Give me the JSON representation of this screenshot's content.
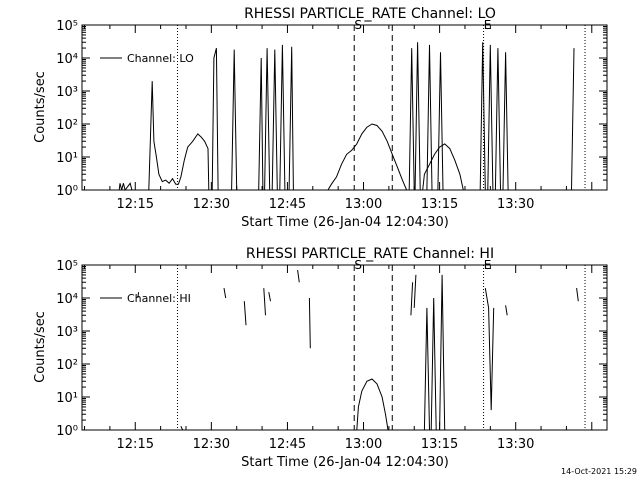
{
  "footer": {
    "timestamp": "14-Oct-2021 15:29"
  },
  "chart_data": [
    {
      "type": "line",
      "title": "RHESSI PARTICLE_RATE Channel: LO",
      "xlabel": "Start Time (26-Jan-04 12:04:30)",
      "ylabel": "Counts/sec",
      "y_scale": "log",
      "ylim": [
        1,
        100000
      ],
      "y_ticks": [
        1,
        10,
        100,
        1000,
        10000,
        100000
      ],
      "x_ticks": [
        "12:15",
        "12:30",
        "12:45",
        "13:00",
        "13:15",
        "13:30"
      ],
      "xlim": [
        "12:04:30",
        "13:48:00"
      ],
      "legend": "top-left",
      "series": [
        {
          "name": "Channel: LO",
          "color": "#000000",
          "segments": [
            [
              [
                "12:11:50",
                1.0
              ],
              [
                "12:12:00",
                1.6
              ],
              [
                "12:12:20",
                1.0
              ],
              [
                "12:12:40",
                1.6
              ],
              [
                "12:13:00",
                1.0
              ],
              [
                "12:14:00",
                1.6
              ],
              [
                "12:14:20",
                1.0
              ]
            ],
            [
              [
                "12:17:40",
                1.0
              ],
              [
                "12:18:20",
                2000
              ],
              [
                "12:18:40",
                30
              ],
              [
                "12:19:10",
                10
              ],
              [
                "12:19:40",
                3
              ],
              [
                "12:20:20",
                1.8
              ],
              [
                "12:21:00",
                2
              ],
              [
                "12:21:40",
                1.6
              ],
              [
                "12:22:20",
                2.2
              ],
              [
                "12:23:00",
                1.5
              ],
              [
                "12:23:30",
                1.5
              ],
              [
                "12:24:00",
                2.5
              ],
              [
                "12:24:40",
                8
              ],
              [
                "12:25:20",
                20
              ],
              [
                "12:26:20",
                30
              ],
              [
                "12:27:20",
                50
              ],
              [
                "12:28:00",
                40
              ],
              [
                "12:28:40",
                30
              ],
              [
                "12:29:20",
                18
              ],
              [
                "12:29:30",
                1.0
              ]
            ],
            [
              [
                "12:30:10",
                1.0
              ],
              [
                "12:30:30",
                10000
              ],
              [
                "12:31:00",
                20000
              ],
              [
                "12:31:20",
                1.0
              ]
            ],
            [
              [
                "12:34:00",
                1.0
              ],
              [
                "12:34:30",
                18000
              ],
              [
                "12:35:00",
                1.0
              ]
            ],
            [
              [
                "12:39:20",
                1.0
              ],
              [
                "12:39:50",
                10000
              ],
              [
                "12:40:10",
                1.0
              ]
            ],
            [
              [
                "12:40:30",
                1.0
              ],
              [
                "12:41:00",
                20000
              ],
              [
                "12:41:30",
                1.0
              ]
            ],
            [
              [
                "12:42:00",
                1.0
              ],
              [
                "12:42:30",
                18000
              ],
              [
                "12:43:00",
                1.0
              ]
            ],
            [
              [
                "12:43:30",
                1.0
              ],
              [
                "12:44:00",
                25000
              ],
              [
                "12:44:30",
                1.0
              ]
            ],
            [
              [
                "12:45:20",
                1.0
              ],
              [
                "12:45:50",
                22000
              ],
              [
                "12:46:10",
                1.0
              ]
            ],
            [
              [
                "12:53:00",
                1.0
              ],
              [
                "12:53:40",
                1.5
              ],
              [
                "12:54:40",
                2.5
              ],
              [
                "12:55:40",
                6
              ],
              [
                "12:56:40",
                12
              ],
              [
                "12:57:40",
                16
              ],
              [
                "12:58:40",
                25
              ],
              [
                "12:59:40",
                50
              ],
              [
                "13:00:40",
                80
              ],
              [
                "13:01:40",
                100
              ],
              [
                "13:02:40",
                90
              ],
              [
                "13:03:40",
                60
              ],
              [
                "13:04:40",
                30
              ],
              [
                "13:05:40",
                12
              ],
              [
                "13:06:40",
                5
              ],
              [
                "13:07:40",
                2
              ],
              [
                "13:08:30",
                1.0
              ]
            ],
            [
              [
                "13:09:00",
                1.0
              ],
              [
                "13:09:30",
                20000
              ],
              [
                "13:10:00",
                1.0
              ]
            ],
            [
              [
                "13:11:40",
                1.0
              ],
              [
                "13:12:00",
                3
              ],
              [
                "13:13:00",
                6
              ],
              [
                "13:14:00",
                12
              ],
              [
                "13:15:00",
                20
              ],
              [
                "13:16:00",
                25
              ],
              [
                "13:17:00",
                18
              ],
              [
                "13:18:00",
                8
              ],
              [
                "13:19:00",
                3
              ],
              [
                "13:19:40",
                1.0
              ]
            ],
            [
              [
                "13:10:10",
                1.0
              ],
              [
                "13:10:40",
                30000
              ],
              [
                "13:11:10",
                1.0
              ]
            ],
            [
              [
                "13:12:30",
                1.0
              ],
              [
                "13:13:00",
                25000
              ],
              [
                "13:13:30",
                1.0
              ]
            ],
            [
              [
                "13:14:40",
                1.0
              ],
              [
                "13:15:10",
                15000
              ],
              [
                "13:15:40",
                1.0
              ]
            ],
            [
              [
                "13:23:00",
                1.0
              ],
              [
                "13:23:30",
                30000
              ],
              [
                "13:24:00",
                1.0
              ]
            ],
            [
              [
                "13:24:30",
                1.0
              ],
              [
                "13:25:00",
                25000
              ],
              [
                "13:25:30",
                1.0
              ]
            ],
            [
              [
                "13:26:00",
                1.0
              ],
              [
                "13:26:30",
                20000
              ],
              [
                "13:27:00",
                1.0
              ]
            ],
            [
              [
                "13:27:30",
                1.0
              ],
              [
                "13:28:00",
                15000
              ],
              [
                "13:28:30",
                1.0
              ]
            ],
            [
              [
                "13:41:00",
                1.0
              ],
              [
                "13:41:30",
                20000
              ]
            ]
          ]
        }
      ],
      "vlines": [
        {
          "time": "12:23:20",
          "style": "dotted",
          "label": ""
        },
        {
          "time": "12:58:10",
          "style": "dashed",
          "label": "S"
        },
        {
          "time": "13:05:40",
          "style": "dashed",
          "label": ""
        },
        {
          "time": "13:23:40",
          "style": "dotted",
          "label": "E"
        },
        {
          "time": "13:43:40",
          "style": "dotted",
          "label": ""
        }
      ]
    },
    {
      "type": "line",
      "title": "RHESSI PARTICLE_RATE Channel: HI",
      "xlabel": "Start Time (26-Jan-04 12:04:30)",
      "ylabel": "Counts/sec",
      "y_scale": "log",
      "ylim": [
        1,
        100000
      ],
      "y_ticks": [
        1,
        10,
        100,
        1000,
        10000,
        100000
      ],
      "x_ticks": [
        "12:15",
        "12:30",
        "12:45",
        "13:00",
        "13:15",
        "13:30"
      ],
      "xlim": [
        "12:04:30",
        "13:48:00"
      ],
      "legend": "top-left",
      "series": [
        {
          "name": "Channel: HI",
          "color": "#000000",
          "segments": [
            [
              [
                "12:15:30",
                10000
              ],
              [
                "12:15:40",
                15000
              ]
            ],
            [
              [
                "12:24:00",
                1.3
              ],
              [
                "12:24:20",
                1.0
              ]
            ],
            [
              [
                "12:32:30",
                20000
              ],
              [
                "12:32:50",
                10000
              ]
            ],
            [
              [
                "12:36:30",
                8000
              ],
              [
                "12:36:50",
                1500
              ]
            ],
            [
              [
                "12:40:20",
                20000
              ],
              [
                "12:40:40",
                3000
              ]
            ],
            [
              [
                "12:41:20",
                15000
              ],
              [
                "12:41:40",
                8000
              ]
            ],
            [
              [
                "12:47:00",
                70000
              ],
              [
                "12:47:20",
                30000
              ]
            ],
            [
              [
                "12:49:20",
                10000
              ],
              [
                "12:49:30",
                300
              ]
            ],
            [
              [
                "12:58:40",
                1.0
              ],
              [
                "12:59:00",
                5
              ],
              [
                "12:59:40",
                15
              ],
              [
                "13:00:40",
                30
              ],
              [
                "13:01:40",
                35
              ],
              [
                "13:02:40",
                25
              ],
              [
                "13:03:40",
                10
              ],
              [
                "13:04:20",
                3
              ],
              [
                "13:04:50",
                1.0
              ]
            ],
            [
              [
                "13:09:20",
                3000
              ],
              [
                "13:09:40",
                30000
              ]
            ],
            [
              [
                "13:10:00",
                5000
              ],
              [
                "13:10:20",
                50000
              ]
            ],
            [
              [
                "13:12:00",
                1.0
              ],
              [
                "13:12:30",
                5000
              ],
              [
                "13:13:00",
                1.0
              ]
            ],
            [
              [
                "13:13:20",
                1.0
              ],
              [
                "13:13:50",
                10000
              ],
              [
                "13:14:20",
                1.0
              ]
            ],
            [
              [
                "13:15:00",
                1.0
              ],
              [
                "13:15:30",
                50000
              ],
              [
                "13:16:00",
                1.0
              ]
            ],
            [
              [
                "13:24:00",
                20000
              ],
              [
                "13:24:40",
                5000
              ],
              [
                "13:25:10",
                4
              ],
              [
                "13:25:40",
                5000
              ]
            ],
            [
              [
                "13:28:00",
                6000
              ],
              [
                "13:28:20",
                3000
              ]
            ],
            [
              [
                "13:42:00",
                20000
              ],
              [
                "13:42:20",
                8000
              ]
            ]
          ]
        }
      ],
      "vlines": [
        {
          "time": "12:23:20",
          "style": "dotted",
          "label": ""
        },
        {
          "time": "12:58:10",
          "style": "dashed",
          "label": "S"
        },
        {
          "time": "13:05:40",
          "style": "dashed",
          "label": ""
        },
        {
          "time": "13:23:40",
          "style": "dotted",
          "label": "E"
        },
        {
          "time": "13:43:40",
          "style": "dotted",
          "label": ""
        }
      ]
    }
  ]
}
